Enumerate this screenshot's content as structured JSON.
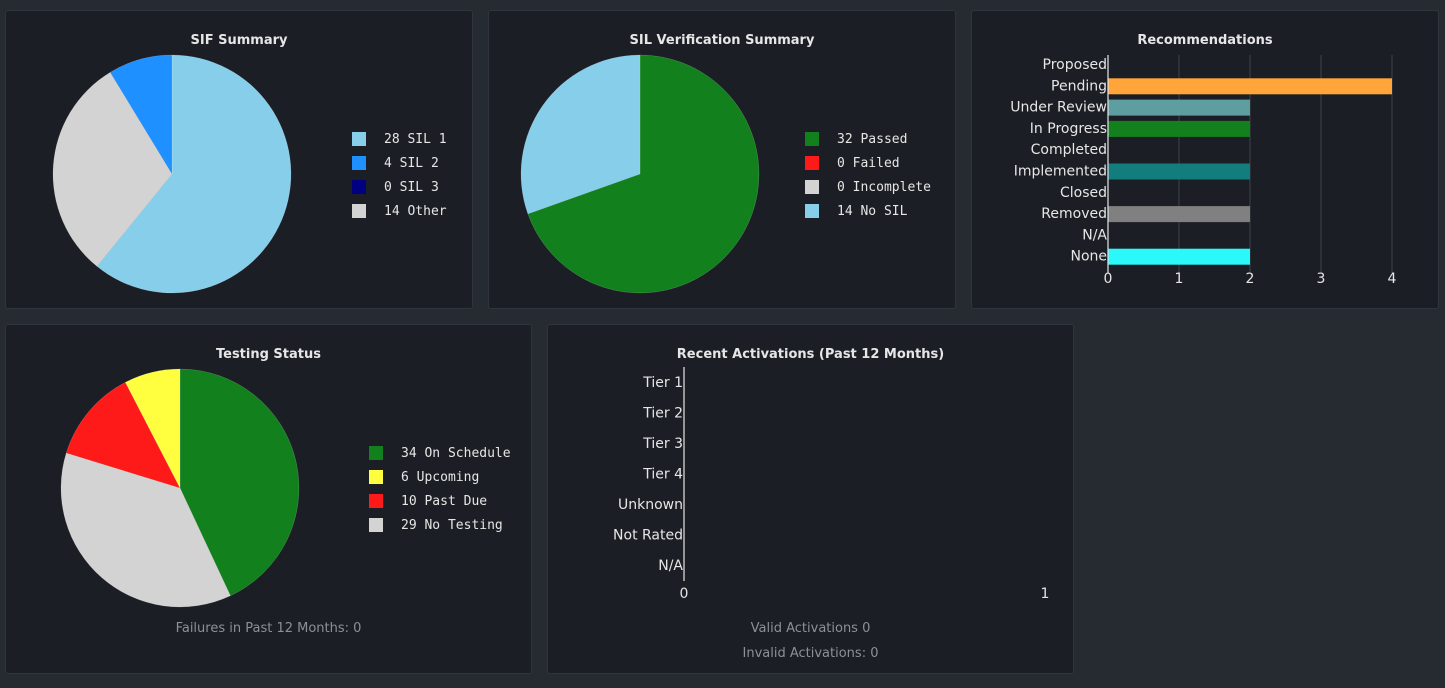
{
  "colors": {
    "page_bg": "#262a31",
    "card_bg": "#1b1e24",
    "text": "#e6e6e6",
    "muted_text": "#8c9097",
    "grid": "#3a3f47"
  },
  "chart_data": [
    {
      "id": "sif",
      "type": "pie",
      "title": "SIF Summary",
      "slices": [
        {
          "label": "SIL 1",
          "value": 28,
          "color": "#87ceeb"
        },
        {
          "label": "SIL 2",
          "value": 4,
          "color": "#1e90ff"
        },
        {
          "label": "SIL 3",
          "value": 0,
          "color": "#000080"
        },
        {
          "label": "Other",
          "value": 14,
          "color": "#d3d3d3"
        }
      ],
      "draw_order": [
        "SIL 1",
        "Other",
        "SIL 2"
      ],
      "legend_placement": "right"
    },
    {
      "id": "sil",
      "type": "pie",
      "title": "SIL Verification Summary",
      "slices": [
        {
          "label": "Passed",
          "value": 32,
          "color": "#13801e"
        },
        {
          "label": "Failed",
          "value": 0,
          "color": "#ff1a1a"
        },
        {
          "label": "Incomplete",
          "value": 0,
          "color": "#d3d3d3"
        },
        {
          "label": "No SIL",
          "value": 14,
          "color": "#87ceeb"
        }
      ],
      "draw_order": [
        "Passed",
        "No SIL"
      ],
      "legend_placement": "right"
    },
    {
      "id": "rec",
      "type": "bar",
      "orientation": "horizontal",
      "title": "Recommendations",
      "categories": [
        "Proposed",
        "Pending",
        "Under Review",
        "In Progress",
        "Completed",
        "Implemented",
        "Closed",
        "Removed",
        "N/A",
        "None"
      ],
      "values": [
        0,
        4,
        2,
        2,
        0,
        2,
        0,
        2,
        0,
        2
      ],
      "colors": [
        "#ffa500",
        "#ffa53a",
        "#5f9ea0",
        "#13801e",
        "#13801e",
        "#137d7d",
        "#808080",
        "#808080",
        "#00ffff",
        "#2af8fb"
      ],
      "xlim": [
        0,
        4
      ],
      "xticks": [
        "0",
        "1",
        "2",
        "3",
        "4"
      ],
      "grid": true
    },
    {
      "id": "testing",
      "type": "pie",
      "title": "Testing Status",
      "slices": [
        {
          "label": "On Schedule",
          "value": 34,
          "color": "#13801e"
        },
        {
          "label": "Upcoming",
          "value": 6,
          "color": "#ffff40"
        },
        {
          "label": "Past Due",
          "value": 10,
          "color": "#ff1a1a"
        },
        {
          "label": "No Testing",
          "value": 29,
          "color": "#d3d3d3"
        }
      ],
      "draw_order": [
        "On Schedule",
        "No Testing",
        "Past Due",
        "Upcoming"
      ],
      "legend_placement": "right",
      "footer": "Failures in Past 12 Months: 0"
    },
    {
      "id": "act",
      "type": "bar",
      "orientation": "horizontal",
      "title": "Recent Activations (Past 12 Months)",
      "categories": [
        "Tier 1",
        "Tier 2",
        "Tier 3",
        "Tier 4",
        "Unknown",
        "Not Rated",
        "N/A"
      ],
      "values": [
        0,
        0,
        0,
        0,
        0,
        0,
        0
      ],
      "xlim": [
        0,
        1
      ],
      "xticks": [
        "0",
        "1"
      ],
      "footer_lines": [
        "Valid Activations 0",
        "Invalid Activations: 0"
      ]
    }
  ]
}
